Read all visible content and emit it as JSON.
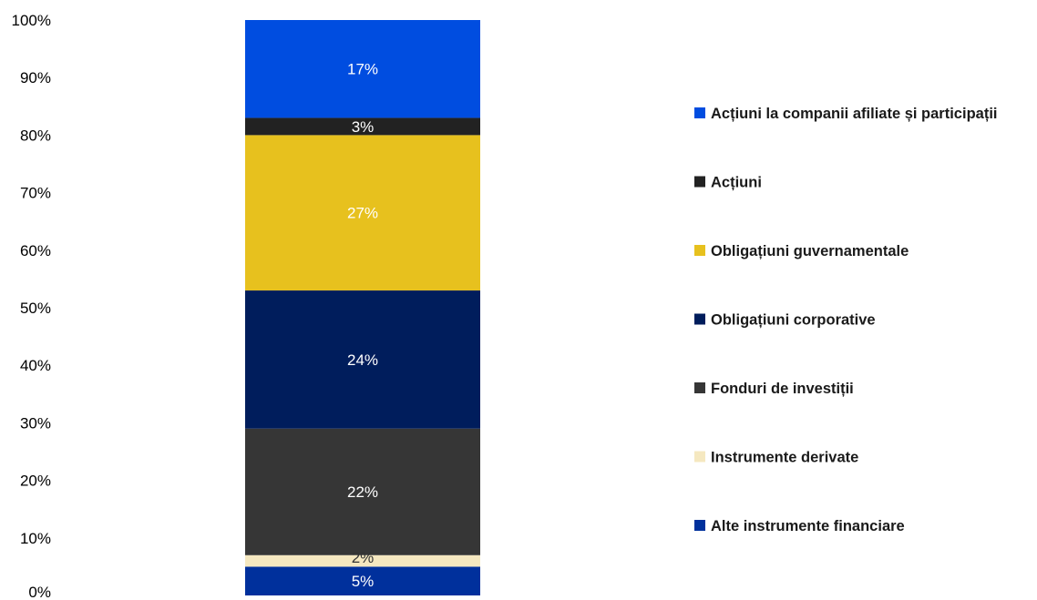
{
  "chart_data": {
    "type": "bar",
    "stacked": true,
    "categories": [
      ""
    ],
    "ylim": [
      0,
      100
    ],
    "y_ticks": [
      "0%",
      "10%",
      "20%",
      "30%",
      "40%",
      "50%",
      "60%",
      "70%",
      "80%",
      "90%",
      "100%"
    ],
    "grid": false,
    "legend_position": "right",
    "series": [
      {
        "name": "Alte instrumente financiare",
        "values": [
          5
        ],
        "label": "5%",
        "color": "#00309c"
      },
      {
        "name": "Instrumente derivate",
        "values": [
          2
        ],
        "label": "2%",
        "color": "#f5e8c0"
      },
      {
        "name": "Fonduri de investiții",
        "values": [
          22
        ],
        "label": "22%",
        "color": "#363636"
      },
      {
        "name": "Obligațiuni corporative",
        "values": [
          24
        ],
        "label": "24%",
        "color": "#001d5c"
      },
      {
        "name": "Obligațiuni guvernamentale",
        "values": [
          27
        ],
        "label": "27%",
        "color": "#e7c11e"
      },
      {
        "name": "Acțiuni",
        "values": [
          3
        ],
        "label": "3%",
        "color": "#222222"
      },
      {
        "name": "Acțiuni la companii afiliate și participații",
        "values": [
          17
        ],
        "label": "17%",
        "color": "#004de0"
      }
    ]
  }
}
